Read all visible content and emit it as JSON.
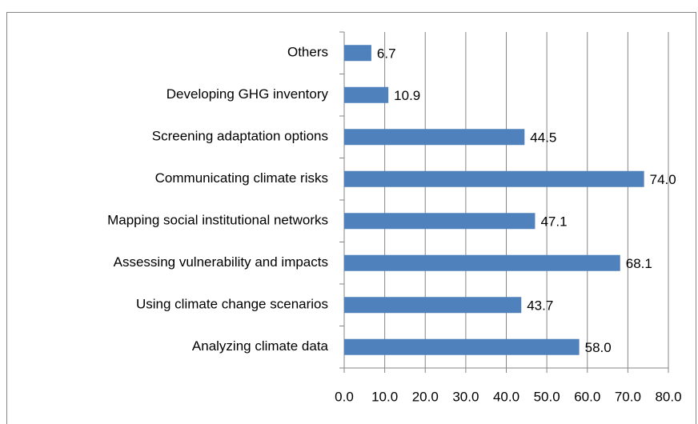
{
  "chart_data": {
    "type": "bar",
    "orientation": "horizontal",
    "categories": [
      "Others",
      "Developing GHG inventory",
      "Screening adaptation options",
      "Communicating climate risks",
      "Mapping social institutional networks",
      "Assessing vulnerability and impacts",
      "Using climate change scenarios",
      "Analyzing climate data"
    ],
    "values": [
      6.7,
      10.9,
      44.5,
      74.0,
      47.1,
      68.1,
      43.7,
      58.0
    ],
    "value_labels": [
      "6.7",
      "10.9",
      "44.5",
      "74.0",
      "47.1",
      "68.1",
      "43.7",
      "58.0"
    ],
    "color": "#4f81bd",
    "xlim": [
      0,
      80
    ],
    "xticks": [
      {
        "value": 0,
        "label": "0.0"
      },
      {
        "value": 10,
        "label": "10.0"
      },
      {
        "value": 20,
        "label": "20.0"
      },
      {
        "value": 30,
        "label": "30.0"
      },
      {
        "value": 40,
        "label": "40.0"
      },
      {
        "value": 50,
        "label": "50.0"
      },
      {
        "value": 60,
        "label": "60.0"
      },
      {
        "value": 70,
        "label": "70.0"
      },
      {
        "value": 80,
        "label": "80.0"
      }
    ],
    "grid": true
  }
}
